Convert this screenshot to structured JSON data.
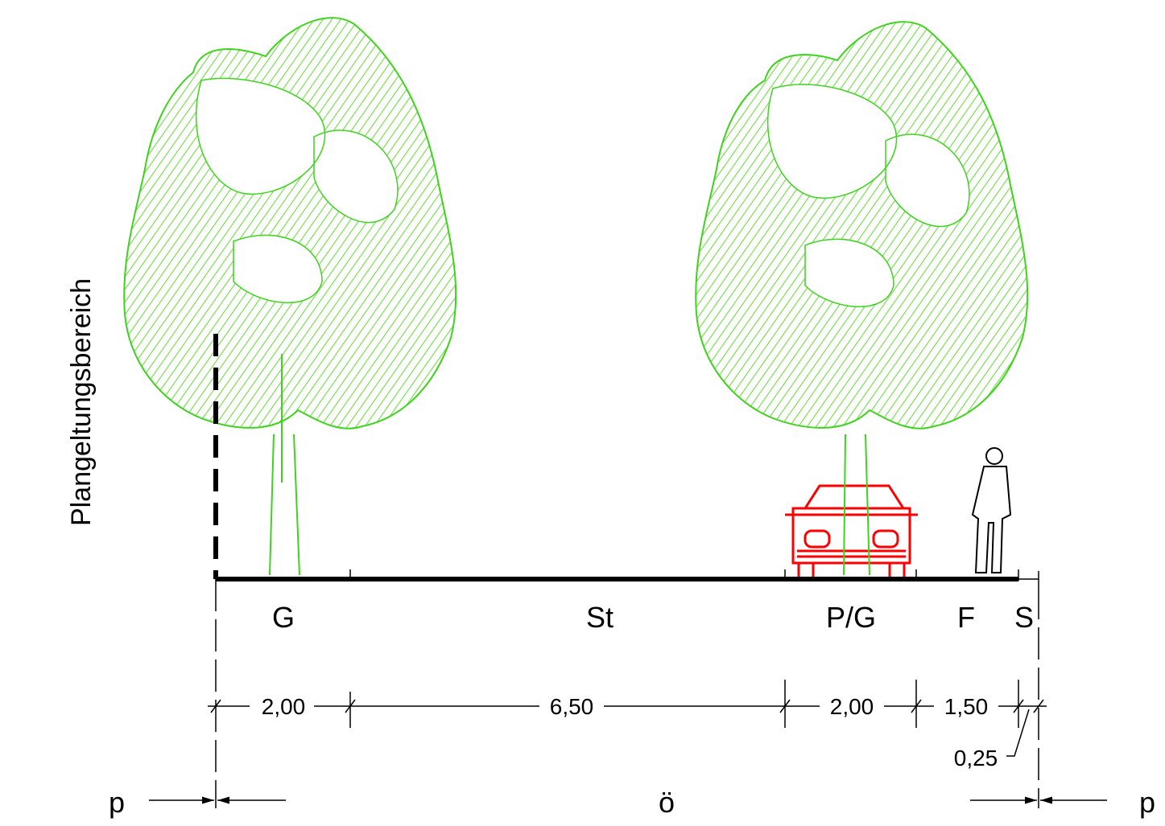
{
  "side_label": "Plangeltungsbereich",
  "zones": [
    {
      "label": "G",
      "width": "2,00"
    },
    {
      "label": "St",
      "width": "6,50"
    },
    {
      "label": "P/G",
      "width": "2,00"
    },
    {
      "label": "F",
      "width": "1,50"
    },
    {
      "label": "S",
      "width": "0,25"
    }
  ],
  "boundary": {
    "left": "p",
    "middle": "ö",
    "right": "p"
  }
}
